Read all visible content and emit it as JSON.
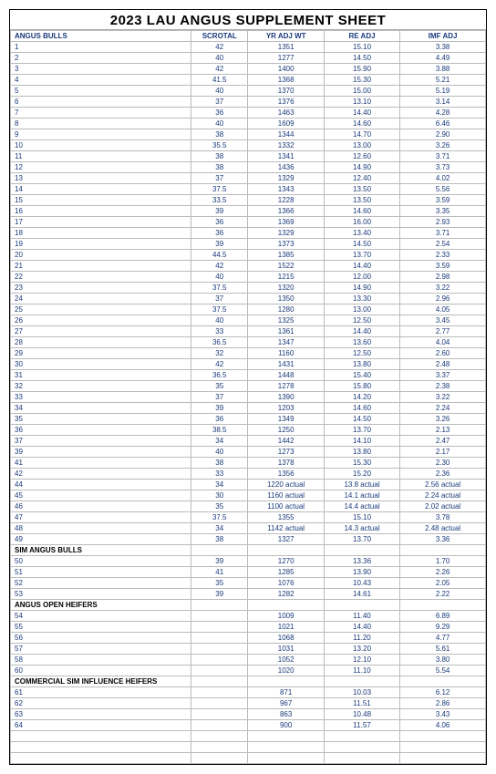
{
  "title": "2023 LAU ANGUS SUPPLEMENT SHEET",
  "columns": [
    "ANGUS BULLS",
    "SCROTAL",
    "YR ADJ WT",
    "RE ADJ",
    "IMF ADJ"
  ],
  "sections": [
    {
      "header": null,
      "rows": [
        [
          "1",
          "42",
          "1351",
          "15.10",
          "3.38"
        ],
        [
          "2",
          "40",
          "1277",
          "14.50",
          "4.49"
        ],
        [
          "3",
          "42",
          "1400",
          "15.90",
          "3.88"
        ],
        [
          "4",
          "41.5",
          "1368",
          "15.30",
          "5.21"
        ],
        [
          "5",
          "40",
          "1370",
          "15.00",
          "5.19"
        ],
        [
          "6",
          "37",
          "1376",
          "13.10",
          "3.14"
        ],
        [
          "7",
          "36",
          "1463",
          "14.40",
          "4.28"
        ],
        [
          "8",
          "40",
          "1609",
          "14.60",
          "6.46"
        ],
        [
          "9",
          "38",
          "1344",
          "14.70",
          "2.90"
        ],
        [
          "10",
          "35.5",
          "1332",
          "13.00",
          "3.26"
        ],
        [
          "11",
          "38",
          "1341",
          "12.60",
          "3.71"
        ],
        [
          "12",
          "38",
          "1436",
          "14.90",
          "3.73"
        ],
        [
          "13",
          "37",
          "1329",
          "12.40",
          "4.02"
        ],
        [
          "14",
          "37.5",
          "1343",
          "13.50",
          "5.56"
        ],
        [
          "15",
          "33.5",
          "1228",
          "13.50",
          "3.59"
        ],
        [
          "16",
          "39",
          "1366",
          "14.60",
          "3.35"
        ],
        [
          "17",
          "36",
          "1369",
          "16.00",
          "2.93"
        ],
        [
          "18",
          "36",
          "1329",
          "13.40",
          "3.71"
        ],
        [
          "19",
          "39",
          "1373",
          "14.50",
          "2.54"
        ],
        [
          "20",
          "44.5",
          "1385",
          "13.70",
          "2.33"
        ],
        [
          "21",
          "42",
          "1522",
          "14.40",
          "3.59"
        ],
        [
          "22",
          "40",
          "1215",
          "12.00",
          "2.98"
        ],
        [
          "23",
          "37.5",
          "1320",
          "14.90",
          "3.22"
        ],
        [
          "24",
          "37",
          "1350",
          "13.30",
          "2.96"
        ],
        [
          "25",
          "37.5",
          "1280",
          "13.00",
          "4.05"
        ],
        [
          "26",
          "40",
          "1325",
          "12.50",
          "3.45"
        ],
        [
          "27",
          "33",
          "1361",
          "14.40",
          "2.77"
        ],
        [
          "28",
          "36.5",
          "1347",
          "13.60",
          "4.04"
        ],
        [
          "29",
          "32",
          "1160",
          "12.50",
          "2.60"
        ],
        [
          "30",
          "42",
          "1431",
          "13.80",
          "2.48"
        ],
        [
          "31",
          "36.5",
          "1448",
          "15.40",
          "3.37"
        ],
        [
          "32",
          "35",
          "1278",
          "15.80",
          "2.38"
        ],
        [
          "33",
          "37",
          "1390",
          "14.20",
          "3.22"
        ],
        [
          "34",
          "39",
          "1203",
          "14.60",
          "2.24"
        ],
        [
          "35",
          "36",
          "1349",
          "14.50",
          "3.26"
        ],
        [
          "36",
          "38.5",
          "1250",
          "13.70",
          "2.13"
        ],
        [
          "37",
          "34",
          "1442",
          "14.10",
          "2.47"
        ],
        [
          "39",
          "40",
          "1273",
          "13.80",
          "2.17"
        ],
        [
          "41",
          "38",
          "1378",
          "15.30",
          "2.30"
        ],
        [
          "42",
          "33",
          "1356",
          "15.20",
          "2.36"
        ],
        [
          "44",
          "34",
          "1220 actual",
          "13.8 actual",
          "2.56 actual"
        ],
        [
          "45",
          "30",
          "1160 actual",
          "14.1 actual",
          "2.24 actual"
        ],
        [
          "46",
          "35",
          "1100 actual",
          "14.4 actual",
          "2.02 actual"
        ],
        [
          "47",
          "37.5",
          "1355",
          "15.10",
          "3.78"
        ],
        [
          "48",
          "34",
          "1142 actual",
          "14.3 actual",
          "2.48 actual"
        ],
        [
          "49",
          "38",
          "1327",
          "13.70",
          "3.36"
        ]
      ]
    },
    {
      "header": "SIM ANGUS BULLS",
      "rows": [
        [
          "50",
          "39",
          "1270",
          "13.36",
          "1.70"
        ],
        [
          "51",
          "41",
          "1285",
          "13.90",
          "2.26"
        ],
        [
          "52",
          "35",
          "1076",
          "10.43",
          "2.05"
        ],
        [
          "53",
          "39",
          "1282",
          "14.61",
          "2.22"
        ]
      ]
    },
    {
      "header": "ANGUS OPEN HEIFERS",
      "rows": [
        [
          "54",
          "",
          "1009",
          "11.40",
          "6.89"
        ],
        [
          "55",
          "",
          "1021",
          "14.40",
          "9.29"
        ],
        [
          "56",
          "",
          "1068",
          "11.20",
          "4.77"
        ],
        [
          "57",
          "",
          "1031",
          "13.20",
          "5.61"
        ],
        [
          "58",
          "",
          "1052",
          "12.10",
          "3.80"
        ],
        [
          "60",
          "",
          "1020",
          "11.10",
          "5.54"
        ]
      ]
    },
    {
      "header": "COMMERCIAL SIM INFLUENCE HEIFERS",
      "rows": [
        [
          "61",
          "",
          "871",
          "10.03",
          "6.12"
        ],
        [
          "62",
          "",
          "967",
          "11.51",
          "2.86"
        ],
        [
          "63",
          "",
          "863",
          "10.48",
          "3.43"
        ],
        [
          "64",
          "",
          "900",
          "11.57",
          "4.06"
        ]
      ]
    }
  ],
  "trailing_blank_rows": 3,
  "colors": {
    "border": "#bbbbbb",
    "text": "#1a3a7a",
    "header_text": "#000000"
  }
}
